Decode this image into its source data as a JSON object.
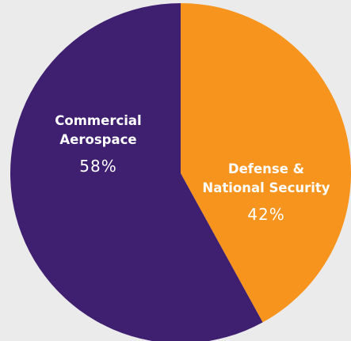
{
  "chart_data": {
    "type": "pie",
    "title": "",
    "series": [
      {
        "values": [
          42,
          58
        ],
        "colors": [
          "#f7941d",
          "#3f1f70"
        ]
      }
    ],
    "slices": [
      {
        "label_lines": [
          "Defense &",
          "National Security"
        ],
        "value": 42,
        "value_label": "42%",
        "color": "#f7941d"
      },
      {
        "label_lines": [
          "Commercial",
          "Aerospace"
        ],
        "value": 58,
        "value_label": "58%",
        "color": "#3f1f70"
      }
    ],
    "start_angle_deg": 0,
    "direction": "clockwise",
    "background": "#ebebeb"
  }
}
